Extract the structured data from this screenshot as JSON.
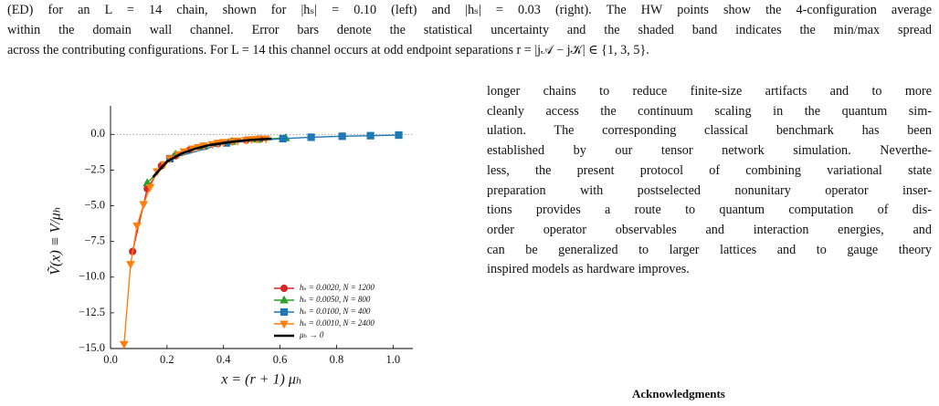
{
  "caption_lines": [
    "(ED) for an L = 14 chain, shown for |hₛ| = 0.10 (left) and |hₛ| = 0.03 (right). The HW points show the 4-configuration average",
    "within the domain wall channel. Error bars denote the statistical uncertainty and the shaded band indicates the min/max spread",
    "across the contributing configurations. For L = 14 this channel occurs at odd endpoint separations r = |j𝒜 − j𝒦| ∈ {1, 3, 5}."
  ],
  "body_lines": [
    "longer chains to reduce finite-size artifacts and to more",
    "cleanly access the continuum scaling in the quantum sim-",
    "ulation. The corresponding classical benchmark has been",
    "established by our tensor network simulation. Neverthe-",
    "less, the present protocol of combining variational state",
    "preparation with postselected nonunitary operator inser-",
    "tions provides a route to quantum computation of dis-",
    "order operator observables and interaction energies, and",
    "can be generalized to larger lattices and to gauge theory",
    "inspired models as hardware improves."
  ],
  "acknowledgments_heading": "Acknowledgments",
  "chart_data": {
    "type": "line",
    "x_label": "x = (r + 1) μₕ",
    "y_label": "Ṽ(x) ≡ V/μₕ",
    "xlim": [
      0,
      1.07
    ],
    "ylim": [
      -15,
      2
    ],
    "xticks": [
      {
        "value": 0,
        "label": "0.0"
      },
      0.2,
      0.4,
      0.6,
      0.8,
      {
        "value": 1,
        "label": "1.0"
      }
    ],
    "yticks": [
      {
        "value": -15,
        "label": "−15.0"
      },
      {
        "value": -12.5,
        "label": "−12.5"
      },
      {
        "value": -10,
        "label": "−10.0"
      },
      {
        "value": -7.5,
        "label": "−7.5"
      },
      {
        "value": -5,
        "label": "−5.0"
      },
      {
        "value": -2.5,
        "label": "−2.5"
      },
      {
        "value": 0,
        "label": "0.0"
      }
    ],
    "hline": 0,
    "legend": "lower right",
    "series": [
      {
        "name": "hₛ = 0.0020,  N = 1200",
        "color": "#d62728",
        "marker": "circle",
        "x": [
          0.078,
          0.13,
          0.18,
          0.23,
          0.28,
          0.33,
          0.38,
          0.43,
          0.48,
          0.53
        ],
        "values": [
          -8.2,
          -3.8,
          -2.2,
          -1.5,
          -1.1,
          -0.85,
          -0.65,
          -0.5,
          -0.4,
          -0.33
        ]
      },
      {
        "name": "hₛ = 0.0050,  N = 800",
        "color": "#2ca02c",
        "marker": "triangle-up",
        "x": [
          0.13,
          0.23,
          0.33,
          0.43,
          0.52,
          0.62
        ],
        "values": [
          -3.4,
          -1.4,
          -0.85,
          -0.5,
          -0.35,
          -0.25
        ]
      },
      {
        "name": "hₛ = 0.0100,  N = 400",
        "color": "#1f77b4",
        "marker": "square",
        "x": [
          0.21,
          0.41,
          0.61,
          0.71,
          0.82,
          0.92,
          1.02
        ],
        "values": [
          -1.7,
          -0.6,
          -0.3,
          -0.2,
          -0.13,
          -0.09,
          -0.05
        ]
      },
      {
        "name": "hₛ = 0.0010,  N = 2400",
        "color": "#ff7f0e",
        "marker": "triangle-down",
        "x": [
          0.048,
          0.071,
          0.094,
          0.117,
          0.14,
          0.165,
          0.19,
          0.21,
          0.24,
          0.26,
          0.29,
          0.31,
          0.33,
          0.36,
          0.38,
          0.4,
          0.43,
          0.45,
          0.48,
          0.5,
          0.52,
          0.55
        ],
        "values": [
          -14.7,
          -9.1,
          -6.4,
          -4.9,
          -3.7,
          -2.6,
          -2.1,
          -1.7,
          -1.4,
          -1.2,
          -1.0,
          -0.9,
          -0.8,
          -0.7,
          -0.6,
          -0.55,
          -0.5,
          -0.45,
          -0.4,
          -0.35,
          -0.33,
          -0.3
        ]
      },
      {
        "name": "μₕ → 0",
        "color": "#000000",
        "marker": "none",
        "x": [
          0.15,
          0.2,
          0.25,
          0.3,
          0.35,
          0.4,
          0.45,
          0.5,
          0.57
        ],
        "values": [
          -3.0,
          -1.9,
          -1.35,
          -1.0,
          -0.75,
          -0.6,
          -0.47,
          -0.38,
          -0.3
        ]
      }
    ]
  }
}
